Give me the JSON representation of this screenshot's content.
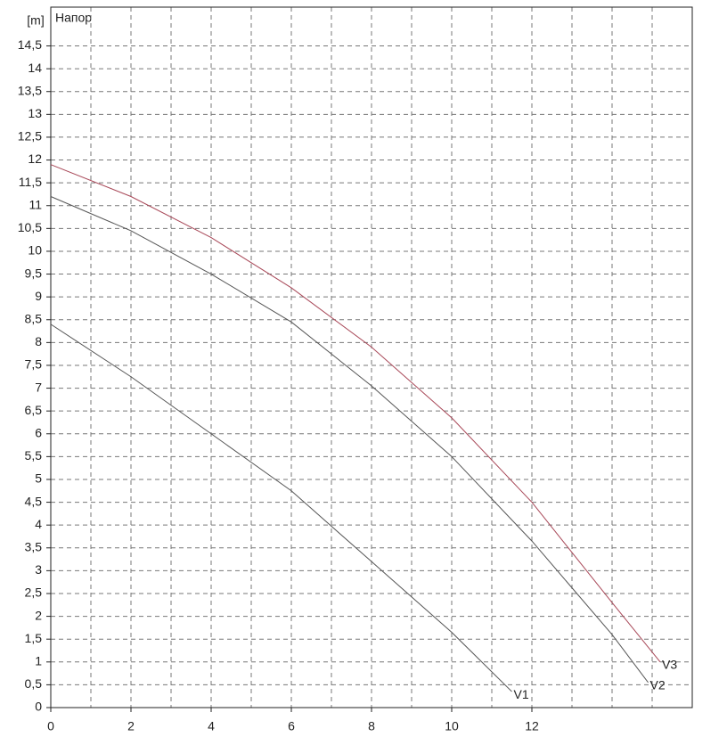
{
  "chart_data": {
    "type": "line",
    "title": "Напор",
    "y_unit": "[m]",
    "xlim": [
      0,
      16
    ],
    "ylim": [
      0,
      15.35
    ],
    "xticks": [
      0,
      2,
      4,
      6,
      8,
      10,
      12
    ],
    "xgrid": [
      1,
      2,
      3,
      4,
      5,
      6,
      7,
      8,
      9,
      10,
      11,
      12,
      13,
      14,
      15
    ],
    "yticks": [
      0,
      {
        "value": 0.5,
        "label": "0,5"
      },
      1,
      {
        "value": 1.5,
        "label": "1,5"
      },
      2,
      {
        "value": 2.5,
        "label": "2,5"
      },
      3,
      {
        "value": 3.5,
        "label": "3,5"
      },
      4,
      {
        "value": 4.5,
        "label": "4,5"
      },
      5,
      {
        "value": 5.5,
        "label": "5,5"
      },
      6,
      {
        "value": 6.5,
        "label": "6,5"
      },
      7,
      {
        "value": 7.5,
        "label": "7,5"
      },
      8,
      {
        "value": 8.5,
        "label": "8,5"
      },
      9,
      {
        "value": 9.5,
        "label": "9,5"
      },
      10,
      {
        "value": 10.5,
        "label": "10,5"
      },
      11,
      {
        "value": 11.5,
        "label": "11,5"
      },
      12,
      {
        "value": 12.5,
        "label": "12,5"
      },
      13,
      {
        "value": 13.5,
        "label": "13,5"
      },
      14,
      {
        "value": 14.5,
        "label": "14,5"
      }
    ],
    "grid": true,
    "series": [
      {
        "name": "V1",
        "color": "#555555",
        "x": [
          0,
          2,
          4,
          6,
          8,
          10,
          11.5
        ],
        "values": [
          8.4,
          7.25,
          6.0,
          4.75,
          3.2,
          1.65,
          0.35
        ]
      },
      {
        "name": "V2",
        "color": "#555555",
        "x": [
          0,
          2,
          4,
          6,
          8,
          10,
          12,
          14,
          14.9
        ],
        "values": [
          11.2,
          10.45,
          9.5,
          8.45,
          7.05,
          5.5,
          3.65,
          1.6,
          0.55
        ]
      },
      {
        "name": "V3",
        "color": "#a84858",
        "x": [
          0,
          2,
          4,
          6,
          8,
          10,
          12,
          14,
          15.2
        ],
        "values": [
          11.9,
          11.2,
          10.3,
          9.2,
          7.9,
          6.35,
          4.5,
          2.3,
          1.0
        ]
      }
    ]
  }
}
